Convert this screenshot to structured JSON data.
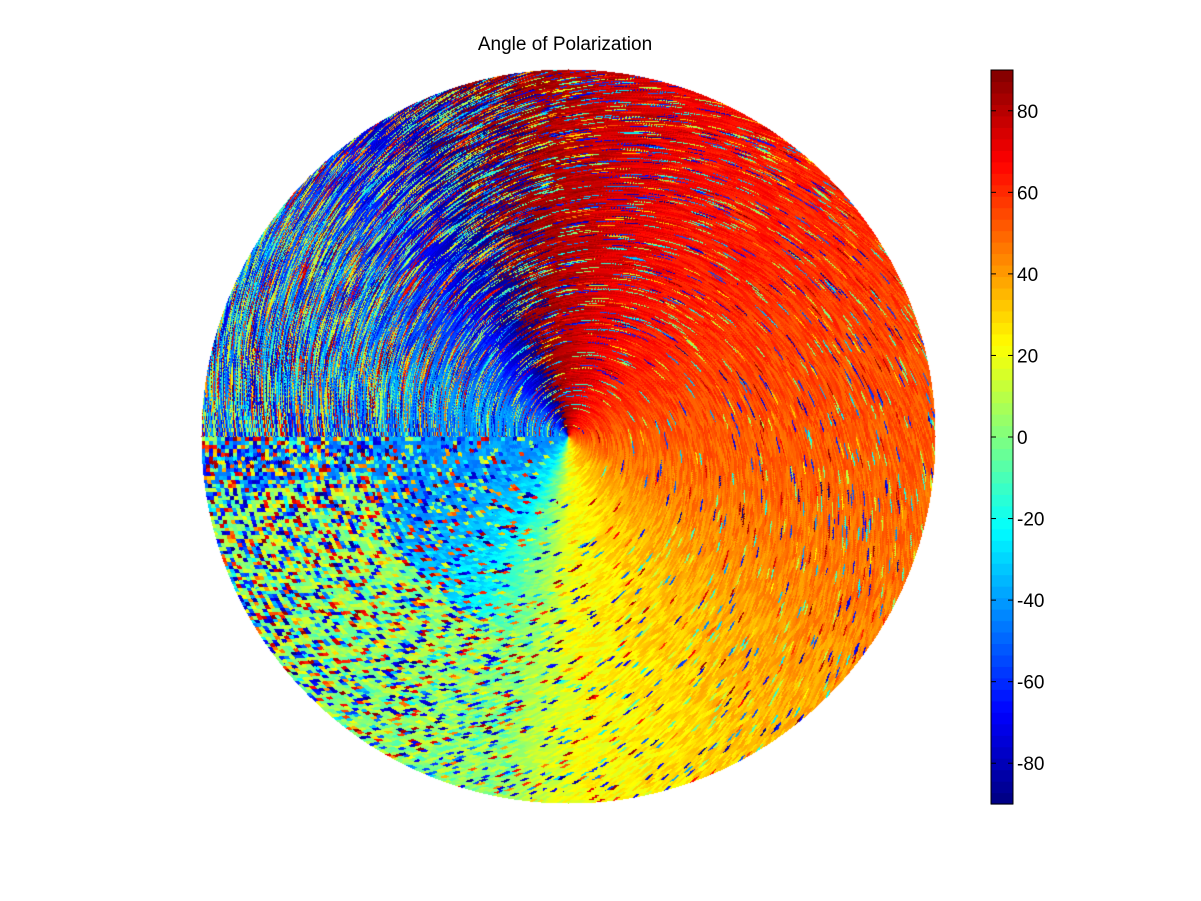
{
  "chart_data": {
    "type": "heatmap",
    "subtype": "polar-pixel-map",
    "title": "Angle of Polarization",
    "xlabel": "",
    "ylabel": "",
    "colormap": "jet",
    "clim": [
      -90,
      90
    ],
    "colorbar": {
      "placement": "right",
      "ticks": [
        80,
        60,
        40,
        20,
        0,
        -20,
        -40,
        -60,
        -80
      ],
      "tick_labels": [
        "80",
        "60",
        "40",
        "20",
        "0",
        "-20",
        "-40",
        "-60",
        "-80"
      ]
    },
    "grid": false,
    "description_of_field": {
      "center_region_values_by_direction": [
        {
          "direction": "east",
          "value": 50
        },
        {
          "direction": "north-east",
          "value": 60
        },
        {
          "direction": "north",
          "value": 78
        },
        {
          "direction": "north-north-west",
          "value": 85
        },
        {
          "direction": "west",
          "value": -45
        },
        {
          "direction": "south-west",
          "value": -40
        },
        {
          "direction": "south",
          "value": 20
        },
        {
          "direction": "south-east",
          "value": 40
        }
      ]
    }
  }
}
